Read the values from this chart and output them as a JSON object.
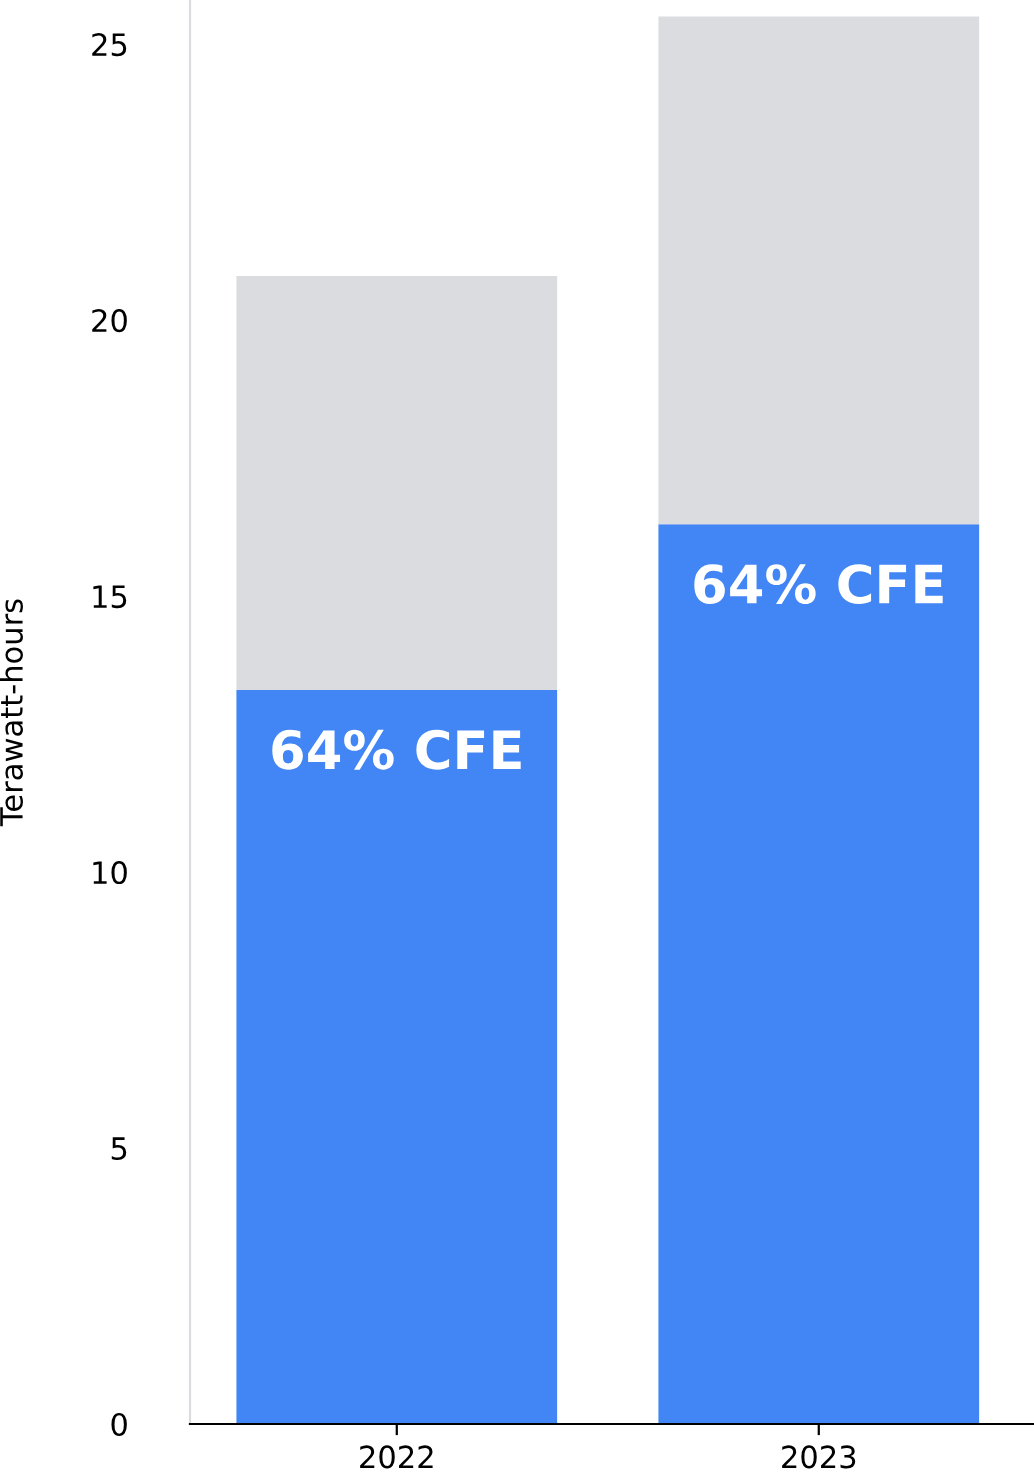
{
  "chart_data": {
    "type": "bar",
    "stacked": true,
    "ylabel": "Terawatt-hours",
    "categories": [
      "2022",
      "2023"
    ],
    "series": [
      {
        "color": "#4285f4",
        "values": [
          13.3,
          16.3
        ]
      },
      {
        "color": "#dadce0",
        "values": [
          7.5,
          9.2
        ]
      }
    ],
    "ylim": [
      0,
      25.8
    ],
    "yticks": [
      0,
      5,
      10,
      15,
      20,
      25
    ],
    "grid": false,
    "legend": false,
    "annotations": [
      {
        "text": "64% CFE",
        "x": "2022",
        "y": 13.3
      },
      {
        "text": "64% CFE",
        "x": "2023",
        "y": 16.3
      }
    ]
  }
}
